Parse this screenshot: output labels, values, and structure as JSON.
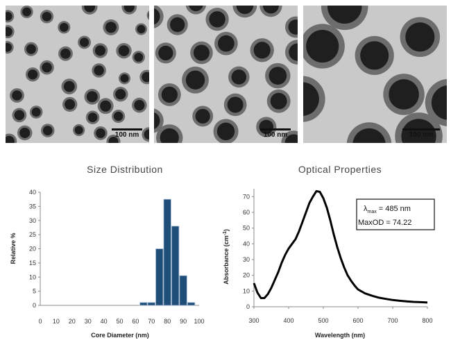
{
  "panels": [
    {
      "scale_label": "100 nm"
    },
    {
      "scale_label": "100 nm"
    },
    {
      "scale_label": "100 nm"
    }
  ],
  "chart_data": [
    {
      "type": "bar",
      "title": "Size Distribution",
      "xlabel": "Core Diameter (nm)",
      "ylabel": "Relative %",
      "xlim": [
        0,
        100
      ],
      "ylim": [
        0,
        40
      ],
      "xticks": [
        0,
        10,
        20,
        30,
        40,
        50,
        60,
        70,
        80,
        90,
        100
      ],
      "yticks": [
        0,
        5,
        10,
        15,
        20,
        25,
        30,
        35,
        40
      ],
      "bar_width": 5,
      "x": [
        65,
        70,
        75,
        80,
        85,
        90,
        95
      ],
      "values": [
        1,
        1,
        20,
        37.5,
        28,
        10.5,
        1
      ],
      "color": "#1f4e79",
      "grid": false
    },
    {
      "type": "line",
      "title": "Optical Properties",
      "xlabel": "Wavelength (nm)",
      "ylabel": "Absorbance (cm-1)",
      "xlim": [
        300,
        800
      ],
      "ylim": [
        0,
        75
      ],
      "xticks": [
        300,
        400,
        500,
        600,
        700,
        800
      ],
      "yticks": [
        0,
        10,
        20,
        30,
        40,
        50,
        60,
        70
      ],
      "x": [
        300,
        310,
        320,
        330,
        340,
        350,
        360,
        370,
        380,
        390,
        400,
        410,
        420,
        430,
        440,
        450,
        460,
        470,
        480,
        490,
        500,
        510,
        520,
        530,
        540,
        550,
        560,
        570,
        580,
        590,
        600,
        620,
        640,
        660,
        680,
        700,
        720,
        740,
        760,
        780,
        800
      ],
      "y": [
        15,
        9,
        5.5,
        5.5,
        8,
        12,
        17,
        22,
        28,
        33,
        37,
        40,
        43,
        48,
        54,
        60,
        66,
        70,
        73.5,
        73,
        69,
        63,
        55,
        46,
        38,
        31,
        25,
        20,
        16.5,
        13.5,
        11,
        8.5,
        7,
        5.8,
        5,
        4.3,
        3.8,
        3.4,
        3.1,
        2.9,
        2.7
      ],
      "color": "#000000",
      "grid": false,
      "annotation": {
        "lambda_symbol": "λ",
        "lambda_sub": "max",
        "lambda_text": " = 485 nm",
        "maxod_text": "MaxOD =  74.22"
      }
    }
  ]
}
